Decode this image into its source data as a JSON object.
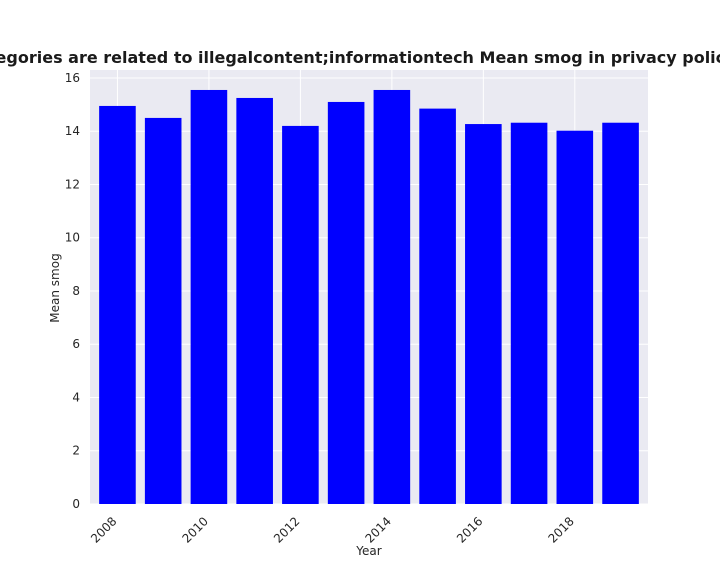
{
  "chart_data": {
    "type": "bar",
    "title": "hen categories are related to illegalcontent;informationtech Mean smog in privacy policies by Y",
    "xlabel": "Year",
    "ylabel": "Mean smog",
    "categories": [
      2008,
      2009,
      2010,
      2011,
      2012,
      2013,
      2014,
      2015,
      2016,
      2017,
      2018,
      2019
    ],
    "values": [
      14.95,
      14.5,
      15.55,
      15.25,
      14.2,
      15.1,
      15.55,
      14.85,
      14.27,
      14.32,
      14.02,
      14.32
    ],
    "x_ticks": [
      2008,
      2010,
      2012,
      2014,
      2016,
      2018
    ],
    "y_ticks": [
      0,
      2,
      4,
      6,
      8,
      10,
      12,
      14,
      16
    ],
    "ylim": [
      0,
      16.3
    ],
    "bar_color": "#0000ff",
    "background_color": "#eaeaf2",
    "grid": true
  }
}
